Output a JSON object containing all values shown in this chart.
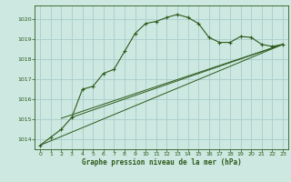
{
  "title": "Graphe pression niveau de la mer (hPa)",
  "background_color": "#cce8e0",
  "grid_color": "#aacccc",
  "line_color": "#2d5a1b",
  "xlim": [
    -0.5,
    23.5
  ],
  "ylim": [
    1013.5,
    1020.7
  ],
  "yticks": [
    1014,
    1015,
    1016,
    1017,
    1018,
    1019,
    1020
  ],
  "xticks": [
    0,
    1,
    2,
    3,
    4,
    5,
    6,
    7,
    8,
    9,
    10,
    11,
    12,
    13,
    14,
    15,
    16,
    17,
    18,
    19,
    20,
    21,
    22,
    23
  ],
  "main_series": [
    [
      0,
      1013.7
    ],
    [
      1,
      1014.1
    ],
    [
      2,
      1014.5
    ],
    [
      3,
      1015.1
    ],
    [
      4,
      1016.5
    ],
    [
      5,
      1016.65
    ],
    [
      6,
      1017.3
    ],
    [
      7,
      1017.5
    ],
    [
      8,
      1018.4
    ],
    [
      9,
      1019.3
    ],
    [
      10,
      1019.8
    ],
    [
      11,
      1019.9
    ],
    [
      12,
      1020.1
    ],
    [
      13,
      1020.25
    ],
    [
      14,
      1020.1
    ],
    [
      15,
      1019.8
    ],
    [
      16,
      1019.1
    ],
    [
      17,
      1018.85
    ],
    [
      18,
      1018.85
    ],
    [
      19,
      1019.15
    ],
    [
      20,
      1019.1
    ],
    [
      21,
      1018.75
    ],
    [
      22,
      1018.65
    ],
    [
      23,
      1018.75
    ]
  ],
  "trend_line1": [
    [
      0,
      1013.7
    ],
    [
      23,
      1018.75
    ]
  ],
  "trend_line2": [
    [
      2,
      1015.05
    ],
    [
      23,
      1018.75
    ]
  ],
  "trend_line3": [
    [
      3,
      1015.1
    ],
    [
      23,
      1018.75
    ]
  ]
}
